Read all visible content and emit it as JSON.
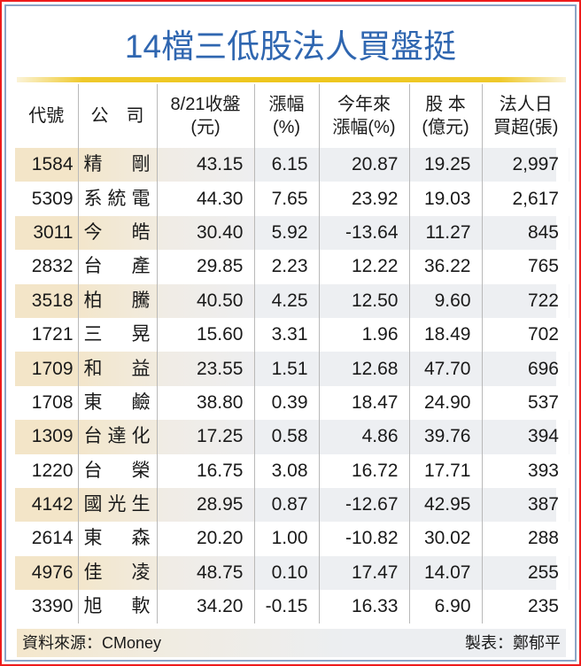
{
  "title": "14檔三低股法人買盤挺",
  "table": {
    "headers": [
      {
        "line1": "代號",
        "line2": ""
      },
      {
        "line1": "公　司",
        "line2": ""
      },
      {
        "line1": "8/21收盤",
        "line2": "(元)"
      },
      {
        "line1": "漲幅",
        "line2": "(%)"
      },
      {
        "line1": "今年來",
        "line2": "漲幅(%)"
      },
      {
        "line1": "股 本",
        "line2": "(億元)"
      },
      {
        "line1": "法人日",
        "line2": "買超(張)"
      }
    ],
    "rows": [
      {
        "code": "1584",
        "company": [
          "精",
          "剛"
        ],
        "close": "43.15",
        "change": "6.15",
        "ytd": "20.87",
        "capital": "19.25",
        "net_buy": "2,997"
      },
      {
        "code": "5309",
        "company": [
          "系",
          "統",
          "電"
        ],
        "close": "44.30",
        "change": "7.65",
        "ytd": "23.92",
        "capital": "19.03",
        "net_buy": "2,617"
      },
      {
        "code": "3011",
        "company": [
          "今",
          "皓"
        ],
        "close": "30.40",
        "change": "5.92",
        "ytd": "-13.64",
        "capital": "11.27",
        "net_buy": "845"
      },
      {
        "code": "2832",
        "company": [
          "台",
          "產"
        ],
        "close": "29.85",
        "change": "2.23",
        "ytd": "12.22",
        "capital": "36.22",
        "net_buy": "765"
      },
      {
        "code": "3518",
        "company": [
          "柏",
          "騰"
        ],
        "close": "40.50",
        "change": "4.25",
        "ytd": "12.50",
        "capital": "9.60",
        "net_buy": "722"
      },
      {
        "code": "1721",
        "company": [
          "三",
          "晃"
        ],
        "close": "15.60",
        "change": "3.31",
        "ytd": "1.96",
        "capital": "18.49",
        "net_buy": "702"
      },
      {
        "code": "1709",
        "company": [
          "和",
          "益"
        ],
        "close": "23.55",
        "change": "1.51",
        "ytd": "12.68",
        "capital": "47.70",
        "net_buy": "696"
      },
      {
        "code": "1708",
        "company": [
          "東",
          "鹼"
        ],
        "close": "38.80",
        "change": "0.39",
        "ytd": "18.47",
        "capital": "24.90",
        "net_buy": "537"
      },
      {
        "code": "1309",
        "company": [
          "台",
          "達",
          "化"
        ],
        "close": "17.25",
        "change": "0.58",
        "ytd": "4.86",
        "capital": "39.76",
        "net_buy": "394"
      },
      {
        "code": "1220",
        "company": [
          "台",
          "榮"
        ],
        "close": "16.75",
        "change": "3.08",
        "ytd": "16.72",
        "capital": "17.71",
        "net_buy": "393"
      },
      {
        "code": "4142",
        "company": [
          "國",
          "光",
          "生"
        ],
        "close": "28.95",
        "change": "0.87",
        "ytd": "-12.67",
        "capital": "42.95",
        "net_buy": "387"
      },
      {
        "code": "2614",
        "company": [
          "東",
          "森"
        ],
        "close": "20.20",
        "change": "1.00",
        "ytd": "-10.82",
        "capital": "30.02",
        "net_buy": "288"
      },
      {
        "code": "4976",
        "company": [
          "佳",
          "凌"
        ],
        "close": "48.75",
        "change": "0.10",
        "ytd": "17.47",
        "capital": "14.07",
        "net_buy": "255"
      },
      {
        "code": "3390",
        "company": [
          "旭",
          "軟"
        ],
        "close": "34.20",
        "change": "-0.15",
        "ytd": "16.33",
        "capital": "6.90",
        "net_buy": "235"
      }
    ]
  },
  "footer": {
    "source": "資料來源：CMoney",
    "author": "製表：鄭郁平"
  },
  "colors": {
    "title": "#2f66b0",
    "outer_border": "#ee1c1c",
    "inner_border": "#8ca4c6",
    "gold_rule": "#eec61c",
    "stripe_left": "#f3e5c8",
    "stripe_right": "#edeff2"
  }
}
